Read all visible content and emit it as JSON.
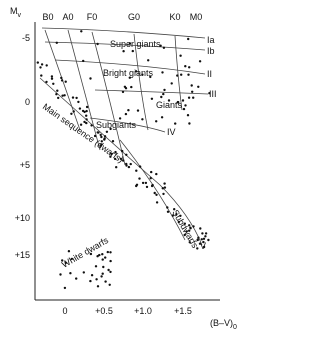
{
  "axes": {
    "y_label": {
      "main": "M",
      "sub": "v"
    },
    "x_label": {
      "main": "(B–V)",
      "sub": "0"
    },
    "y_ticks": [
      "-5",
      "0",
      "+5",
      "+10",
      "+15"
    ],
    "x_ticks": [
      "0",
      "+0.5",
      "+1.0",
      "+1.5"
    ],
    "spectral_types": [
      "B0",
      "A0",
      "F0",
      "G0",
      "K0",
      "M0"
    ]
  },
  "regions": [
    "Super giants",
    "Bright giants",
    "Giants",
    "Subgiants",
    "Main sequence (dwarfs)",
    "Subdwarfs",
    "White dwarfs"
  ],
  "classes": [
    "Ia",
    "Ib",
    "II",
    "III",
    "IV",
    "V"
  ]
}
